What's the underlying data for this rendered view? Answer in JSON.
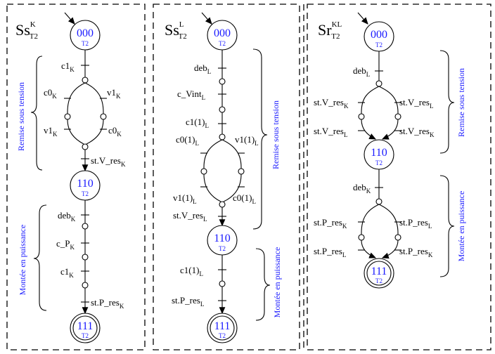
{
  "panels": [
    {
      "title": {
        "main": "Ss",
        "sup": "K",
        "sub": "T2"
      },
      "states": {
        "s000": "000",
        "s110": "110",
        "s111": "111",
        "sub": "T2"
      },
      "phases": {
        "remise": "Remise sous tension",
        "montee": "Montée en puissance"
      },
      "events": [
        {
          "b": "c1",
          "s": "K"
        },
        {
          "b": "c0",
          "s": "K"
        },
        {
          "b": "v1",
          "s": "K"
        },
        {
          "b": "v1",
          "s": "K"
        },
        {
          "b": "c0",
          "s": "K"
        },
        {
          "b": "st.V_res",
          "s": "K"
        },
        {
          "b": "deb",
          "s": "K"
        },
        {
          "b": "c_P",
          "s": "K"
        },
        {
          "b": "c1",
          "s": "K"
        },
        {
          "b": "st.P_res",
          "s": "K"
        }
      ]
    },
    {
      "title": {
        "main": "Ss",
        "sup": "L",
        "sub": "T2"
      },
      "states": {
        "s000": "000",
        "s110": "110",
        "s111": "111",
        "sub": "T2"
      },
      "phases": {
        "remise": "Remise sous tension",
        "montee": "Montée en puissance"
      },
      "events": [
        {
          "b": "deb",
          "s": "L"
        },
        {
          "b": "c_Vint",
          "s": "L"
        },
        {
          "b": "c1(1)",
          "s": "L"
        },
        {
          "b": "c0(1)",
          "s": "L"
        },
        {
          "b": "v1(1)",
          "s": "L"
        },
        {
          "b": "v1(1)",
          "s": "L"
        },
        {
          "b": "c0(1)",
          "s": "L"
        },
        {
          "b": "st.V_res",
          "s": "L"
        },
        {
          "b": "c1(1)",
          "s": "L"
        },
        {
          "b": "st.P_res",
          "s": "L"
        }
      ]
    },
    {
      "title": {
        "main": "Sr",
        "sup": "KL",
        "sub": "T2"
      },
      "states": {
        "s000": "000",
        "s110": "110",
        "s111": "111",
        "sub": "T2"
      },
      "phases": {
        "remise": "Remise sous tension",
        "montee": "Montée en puissance"
      },
      "events": [
        {
          "b": "deb",
          "s": "L"
        },
        {
          "b": "st.V_res",
          "s": "K"
        },
        {
          "b": "st.V_res",
          "s": "L"
        },
        {
          "b": "st.V_res",
          "s": "L"
        },
        {
          "b": "st.V_res",
          "s": "K"
        },
        {
          "b": "deb",
          "s": "K"
        },
        {
          "b": "st.P_res",
          "s": "K"
        },
        {
          "b": "st.P_res",
          "s": "L"
        },
        {
          "b": "st.P_res",
          "s": "L"
        },
        {
          "b": "st.P_res",
          "s": "K"
        }
      ]
    }
  ]
}
